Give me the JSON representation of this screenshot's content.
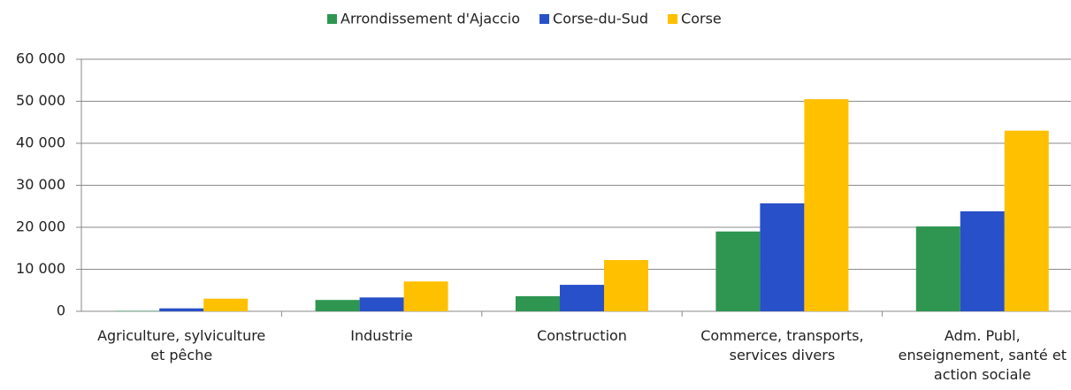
{
  "chart_data": {
    "type": "bar",
    "categories": [
      "Agriculture, sylviculture et pêche",
      "Industrie",
      "Construction",
      "Commerce, transports, services divers",
      "Adm. Publ, enseignement, santé et action sociale"
    ],
    "series": [
      {
        "name": "Arrondissement d'Ajaccio",
        "color": "#2e9651",
        "values": [
          100,
          2700,
          3600,
          19000,
          20200
        ]
      },
      {
        "name": "Corse-du-Sud",
        "color": "#2850c8",
        "values": [
          700,
          3300,
          6300,
          25700,
          23800
        ]
      },
      {
        "name": "Corse",
        "color": "#ffc000",
        "values": [
          3000,
          7100,
          12200,
          50500,
          43000
        ]
      }
    ],
    "ylim": [
      0,
      60000
    ],
    "yticks": [
      0,
      {
        "value": 10000,
        "label": "10 000"
      },
      {
        "value": 20000,
        "label": "20 000"
      },
      {
        "value": 30000,
        "label": "30 000"
      },
      {
        "value": 40000,
        "label": "40 000"
      },
      {
        "value": 50000,
        "label": "50 000"
      },
      {
        "value": 60000,
        "label": "60 000"
      }
    ],
    "grid": true,
    "legend": "top"
  }
}
